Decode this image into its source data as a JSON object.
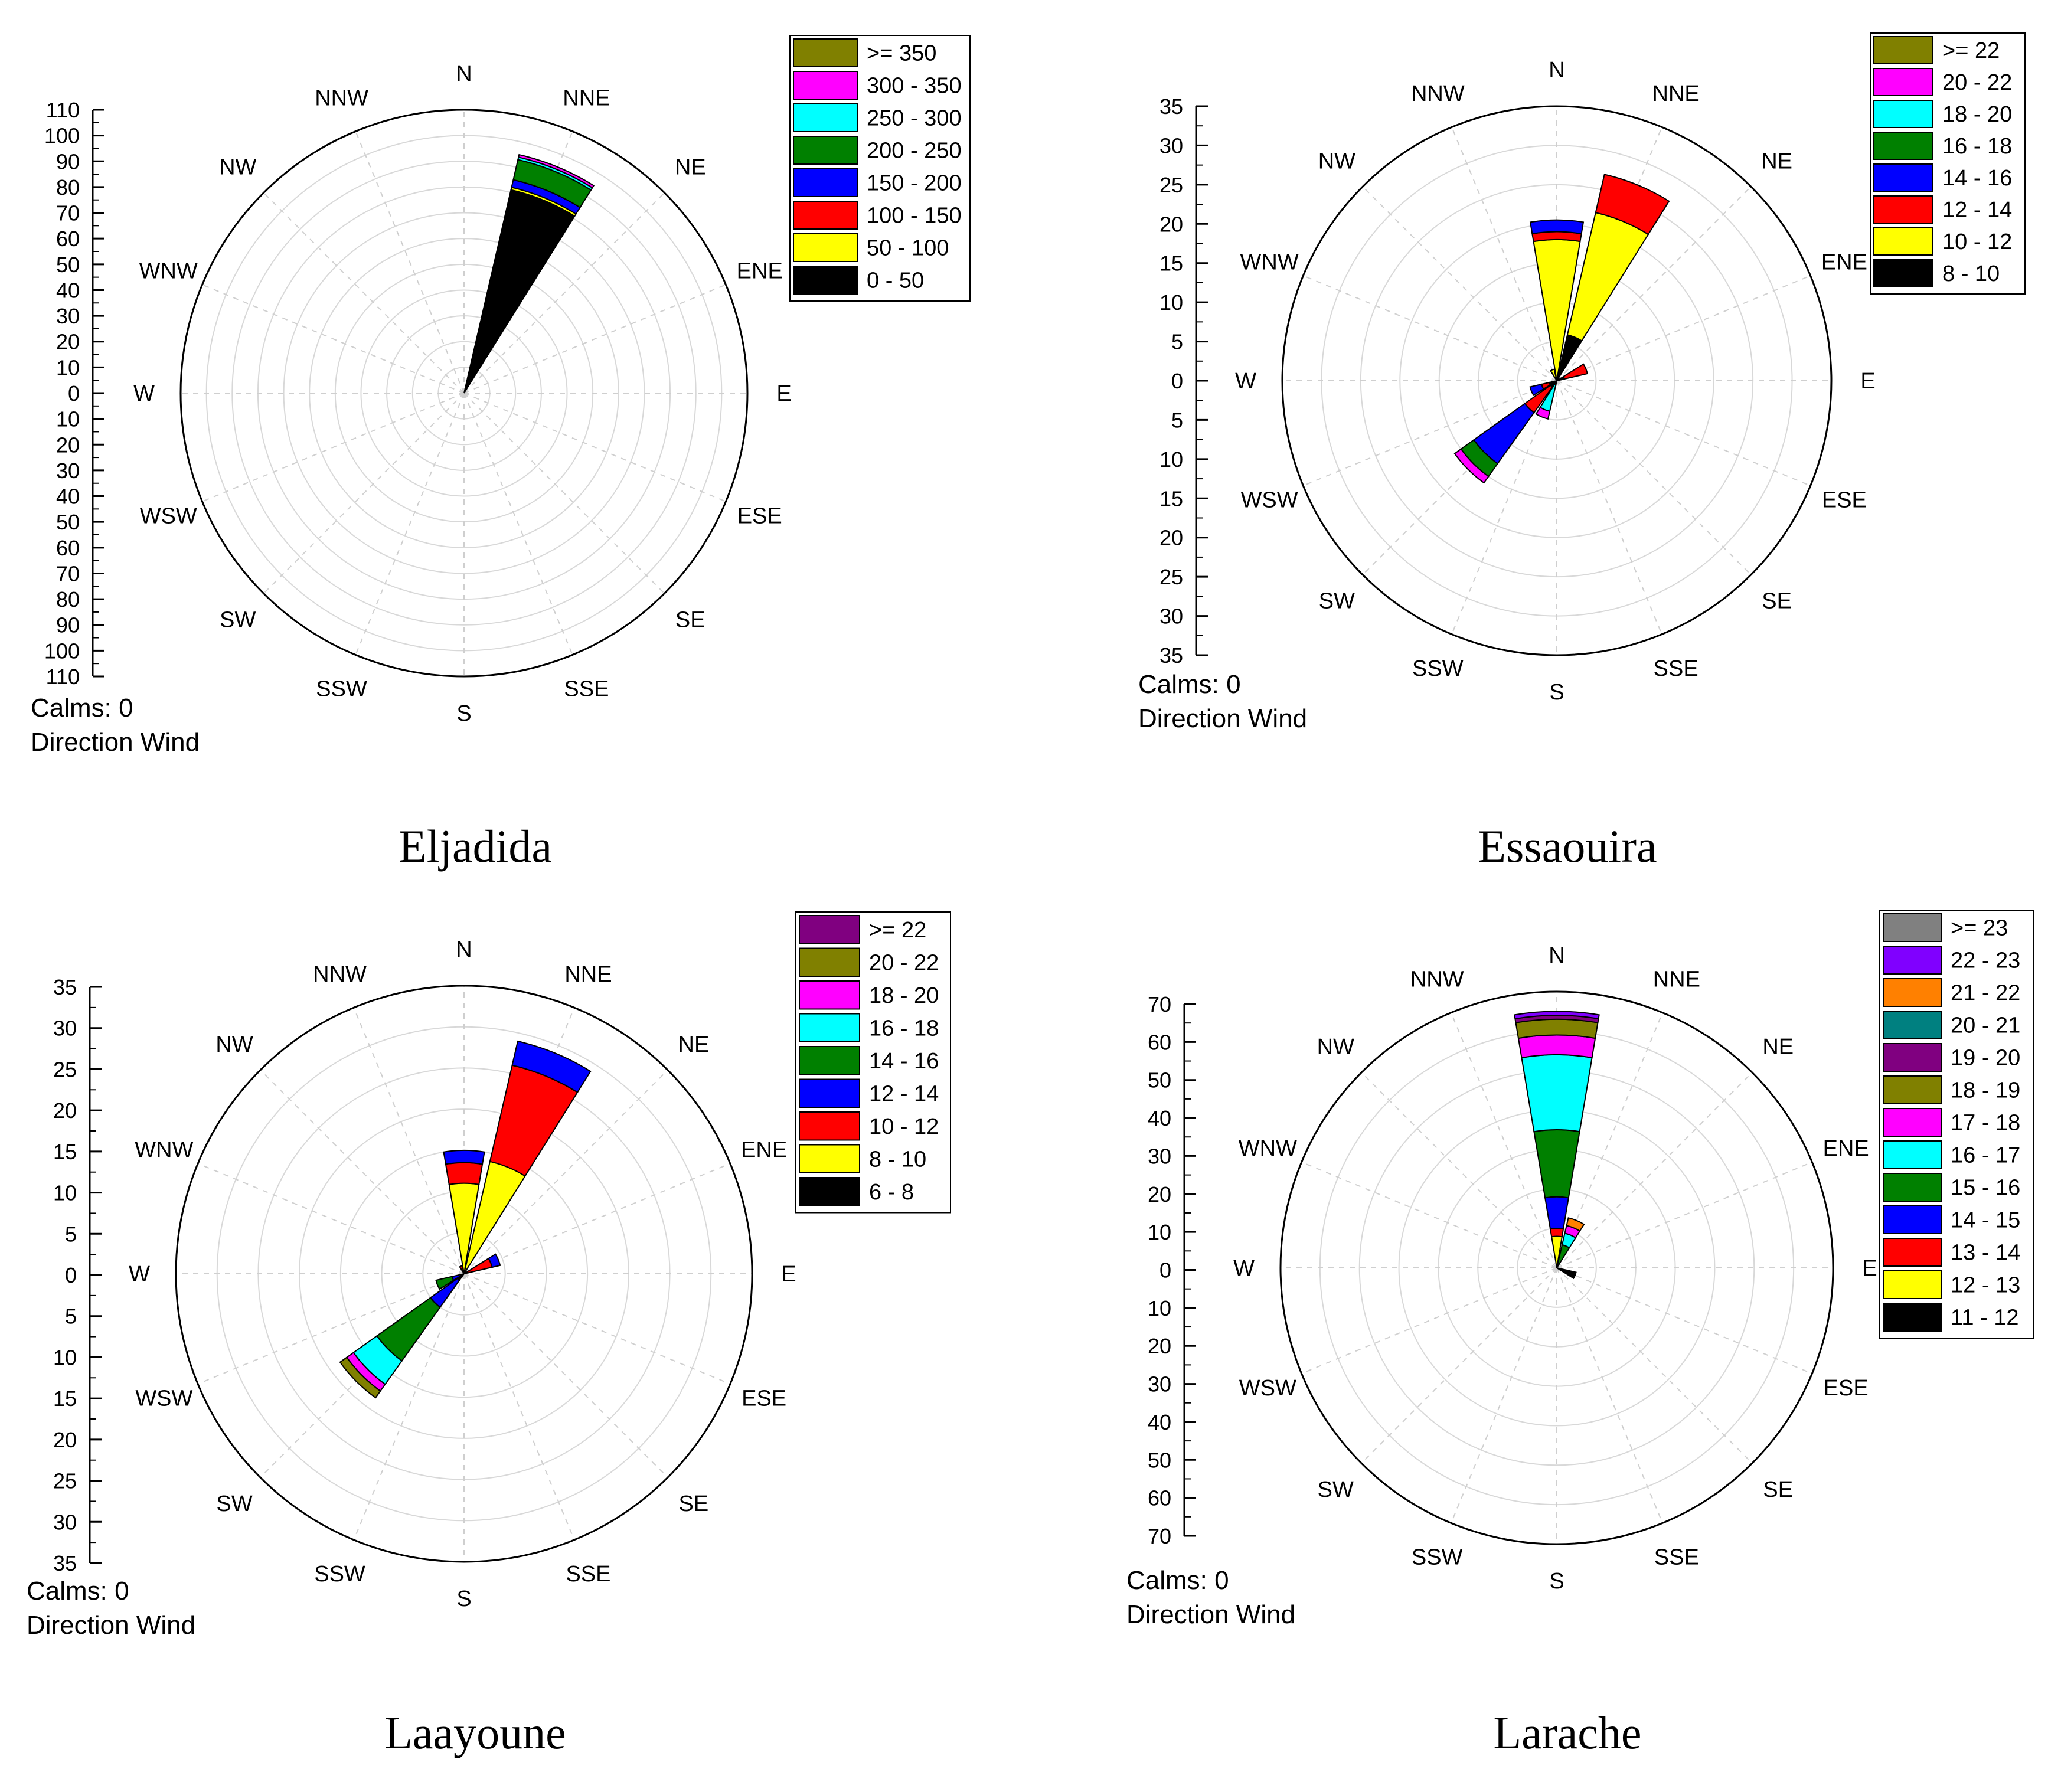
{
  "figure": {
    "directions": [
      "N",
      "NNE",
      "NE",
      "ENE",
      "E",
      "ESE",
      "SE",
      "SSE",
      "S",
      "SSW",
      "SW",
      "WSW",
      "W",
      "WNW",
      "NW",
      "NNW"
    ]
  },
  "chart_data": [
    {
      "type": "windrose",
      "caption": "Eljadida",
      "calms_label": "Calms: 0",
      "direction_label": "Direction Wind",
      "axis_max": 110,
      "axis_step": 10,
      "ticks": [
        "110",
        "100",
        "90",
        "80",
        "70",
        "60",
        "50",
        "40",
        "30",
        "20",
        "10",
        "0",
        "10",
        "20",
        "30",
        "40",
        "50",
        "60",
        "70",
        "80",
        "90",
        "100",
        "110"
      ],
      "legend": [
        {
          "label": ">= 350",
          "color": "#808000"
        },
        {
          "label": "300 - 350",
          "color": "#ff00ff"
        },
        {
          "label": "250 - 300",
          "color": "#00ffff"
        },
        {
          "label": "200 - 250",
          "color": "#008000"
        },
        {
          "label": "150 - 200",
          "color": "#0000ff"
        },
        {
          "label": "100 - 150",
          "color": "#ff0000"
        },
        {
          "label": "50 - 100",
          "color": "#ffff00"
        },
        {
          "label": "0 - 50",
          "color": "#000000"
        }
      ],
      "petals": [
        {
          "dir": "NNE",
          "segments": [
            81,
            1,
            0,
            3,
            8,
            1,
            1,
            0
          ]
        }
      ]
    },
    {
      "type": "windrose",
      "caption": "Essaouira",
      "calms_label": "Calms: 0",
      "direction_label": "Direction Wind",
      "axis_max": 35,
      "axis_step": 5,
      "ticks": [
        "35",
        "30",
        "25",
        "20",
        "15",
        "10",
        "5",
        "0",
        "5",
        "10",
        "15",
        "20",
        "25",
        "30",
        "35"
      ],
      "legend": [
        {
          "label": ">= 22",
          "color": "#808000"
        },
        {
          "label": "20 - 22",
          "color": "#ff00ff"
        },
        {
          "label": "18 - 20",
          "color": "#00ffff"
        },
        {
          "label": "16 - 18",
          "color": "#008000"
        },
        {
          "label": "14 - 16",
          "color": "#0000ff"
        },
        {
          "label": "12 - 14",
          "color": "#ff0000"
        },
        {
          "label": "10 - 12",
          "color": "#ffff00"
        },
        {
          "label": "8 - 10",
          "color": "#000000"
        }
      ],
      "petals": [
        {
          "dir": "N",
          "segments": [
            0,
            18,
            1,
            1.5
          ]
        },
        {
          "dir": "NNW",
          "segments": [
            0,
            1.5
          ]
        },
        {
          "dir": "NNE",
          "segments": [
            6,
            16,
            5
          ]
        },
        {
          "dir": "ENE",
          "segments": [
            1,
            0,
            3
          ]
        },
        {
          "dir": "SSW",
          "segments": [
            0.5,
            0,
            0,
            0,
            0,
            3.5,
            1
          ]
        },
        {
          "dir": "SW",
          "segments": [
            1,
            0,
            4,
            8,
            2,
            0,
            1
          ]
        },
        {
          "dir": "WSW",
          "segments": [
            1,
            0,
            1,
            1.5
          ]
        }
      ]
    },
    {
      "type": "windrose",
      "caption": "Laayoune",
      "calms_label": "Calms: 0",
      "direction_label": "Direction Wind",
      "axis_max": 35,
      "axis_step": 5,
      "ticks": [
        "35",
        "30",
        "25",
        "20",
        "15",
        "10",
        "5",
        "0",
        "5",
        "10",
        "15",
        "20",
        "25",
        "30",
        "35"
      ],
      "legend": [
        {
          "label": ">= 22",
          "color": "#800080"
        },
        {
          "label": "20 - 22",
          "color": "#808000"
        },
        {
          "label": "18 - 20",
          "color": "#ff00ff"
        },
        {
          "label": "16 - 18",
          "color": "#00ffff"
        },
        {
          "label": "14 - 16",
          "color": "#008000"
        },
        {
          "label": "12 - 14",
          "color": "#0000ff"
        },
        {
          "label": "10 - 12",
          "color": "#ff0000"
        },
        {
          "label": "8 - 10",
          "color": "#ffff00"
        },
        {
          "label": "6 - 8",
          "color": "#000000"
        }
      ],
      "petals": [
        {
          "dir": "N",
          "segments": [
            0,
            11,
            2.5,
            1.5
          ]
        },
        {
          "dir": "NNE",
          "segments": [
            0,
            14,
            12,
            3
          ]
        },
        {
          "dir": "ENE",
          "segments": [
            0,
            0,
            3.5,
            1
          ]
        },
        {
          "dir": "NNW",
          "segments": [
            0,
            0,
            1
          ]
        },
        {
          "dir": "SW",
          "segments": [
            1,
            0,
            0,
            4,
            8,
            3.5,
            1,
            1,
            0
          ]
        },
        {
          "dir": "WSW",
          "segments": [
            0,
            0,
            0,
            1.5,
            2
          ]
        }
      ]
    },
    {
      "type": "windrose",
      "caption": "Larache",
      "calms_label": "Calms: 0",
      "direction_label": "Direction Wind",
      "axis_max": 70,
      "axis_step": 10,
      "ticks": [
        "70",
        "60",
        "50",
        "40",
        "30",
        "20",
        "10",
        "0",
        "10",
        "20",
        "30",
        "40",
        "50",
        "60",
        "70"
      ],
      "legend": [
        {
          "label": ">= 23",
          "color": "#808080"
        },
        {
          "label": "22 - 23",
          "color": "#8000ff"
        },
        {
          "label": "21 - 22",
          "color": "#ff8000"
        },
        {
          "label": "20 - 21",
          "color": "#008080"
        },
        {
          "label": "19 - 20",
          "color": "#800080"
        },
        {
          "label": "18 - 19",
          "color": "#808000"
        },
        {
          "label": "17 - 18",
          "color": "#ff00ff"
        },
        {
          "label": "16 - 17",
          "color": "#00ffff"
        },
        {
          "label": "15 - 16",
          "color": "#008000"
        },
        {
          "label": "14 - 15",
          "color": "#0000ff"
        },
        {
          "label": "13 - 14",
          "color": "#ff0000"
        },
        {
          "label": "12 - 13",
          "color": "#ffff00"
        },
        {
          "label": "11 - 12",
          "color": "#000000"
        }
      ],
      "petals": [
        {
          "dir": "N",
          "segments": [
            0,
            8,
            2,
            8,
            17,
            19,
            5,
            4,
            1,
            0,
            0,
            1
          ]
        },
        {
          "dir": "NNE",
          "segments": [
            0,
            0,
            0,
            1,
            5,
            3,
            2,
            0,
            0,
            0,
            2
          ]
        },
        {
          "dir": "ESE",
          "segments": [
            5
          ]
        }
      ]
    }
  ]
}
